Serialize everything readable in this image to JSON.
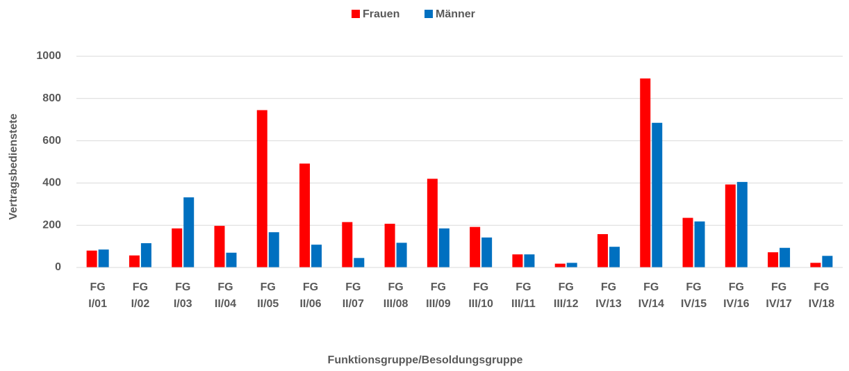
{
  "chart_data": {
    "type": "bar",
    "x_label": "Funktionsgruppe/Besoldungsgruppe",
    "y_label": "Vertragsbedienstete",
    "categories": [
      "FG I/01",
      "FG I/02",
      "FG I/03",
      "FG II/04",
      "FG II/05",
      "FG II/06",
      "FG II/07",
      "FG III/08",
      "FG III/09",
      "FG III/10",
      "FG III/11",
      "FG III/12",
      "FG IV/13",
      "FG IV/14",
      "FG IV/15",
      "FG IV/16",
      "FG IV/17",
      "FG IV/18"
    ],
    "series": [
      {
        "name": "Frauen",
        "color": "#ff0000",
        "values": [
          80,
          57,
          185,
          197,
          745,
          492,
          215,
          207,
          420,
          192,
          62,
          18,
          158,
          895,
          235,
          393,
          72,
          22
        ]
      },
      {
        "name": "Männer",
        "color": "#0070c0",
        "values": [
          85,
          115,
          332,
          70,
          167,
          108,
          45,
          117,
          185,
          142,
          62,
          22,
          98,
          685,
          218,
          405,
          93,
          55
        ]
      }
    ],
    "ylim": [
      0,
      1000
    ],
    "yticks": [
      0,
      200,
      400,
      600,
      800,
      1000
    ],
    "grid": true,
    "legend": "top"
  }
}
